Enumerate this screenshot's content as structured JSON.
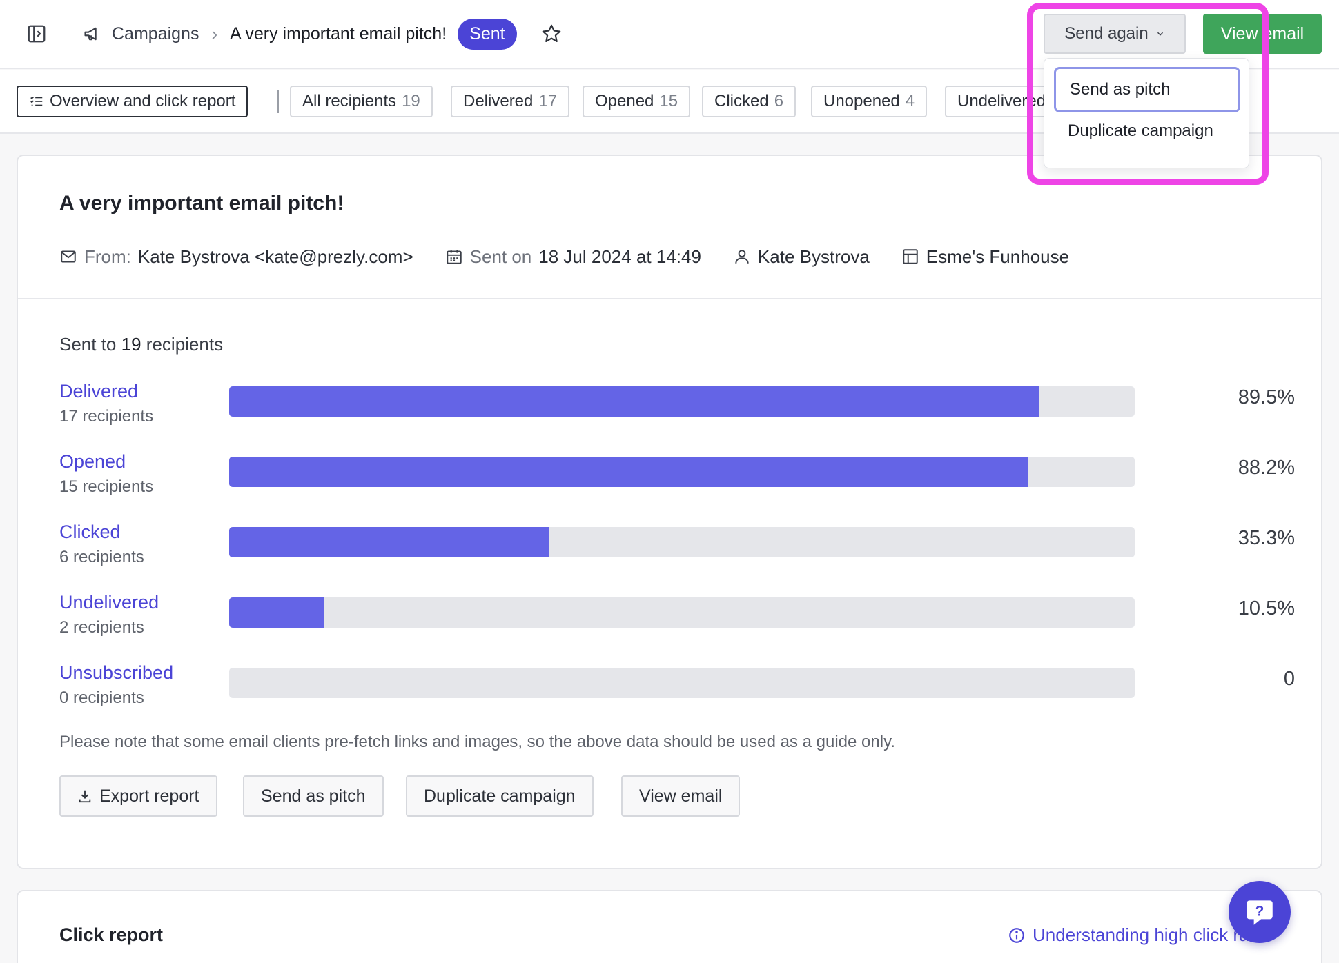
{
  "header": {
    "breadcrumb": {
      "section": "Campaigns",
      "current": "A very important email pitch!"
    },
    "status_badge": "Sent",
    "send_again_label": "Send again",
    "view_email_label": "View email"
  },
  "dropdown": {
    "items": [
      {
        "label": "Send as pitch"
      },
      {
        "label": "Duplicate campaign"
      }
    ]
  },
  "tabs": [
    {
      "label": "Overview and click report",
      "count": "",
      "active": true
    },
    {
      "label": "All recipients",
      "count": "19"
    },
    {
      "label": "Delivered",
      "count": "17"
    },
    {
      "label": "Opened",
      "count": "15"
    },
    {
      "label": "Clicked",
      "count": "6"
    },
    {
      "label": "Unopened",
      "count": "4"
    },
    {
      "label": "Undelivered",
      "count": ""
    }
  ],
  "campaign": {
    "title": "A very important email pitch!",
    "from_label": "From:",
    "from_value": "Kate Bystrova <kate@prezly.com>",
    "sent_label": "Sent on",
    "sent_value": "18 Jul 2024 at 14:49",
    "author": "Kate Bystrova",
    "newsroom": "Esme's Funhouse"
  },
  "stats": {
    "sent_to_prefix": "Sent to",
    "sent_to_count": "19",
    "sent_to_suffix": "recipients",
    "rows": [
      {
        "name": "Delivered",
        "sub": "17 recipients",
        "pct_label": "89.5%",
        "fill": 0.895
      },
      {
        "name": "Opened",
        "sub": "15 recipients",
        "pct_label": "88.2%",
        "fill": 0.882
      },
      {
        "name": "Clicked",
        "sub": "6 recipients",
        "pct_label": "35.3%",
        "fill": 0.353
      },
      {
        "name": "Undelivered",
        "sub": "2 recipients",
        "pct_label": "10.5%",
        "fill": 0.105
      },
      {
        "name": "Unsubscribed",
        "sub": "0 recipients",
        "pct_label": "0",
        "fill": 0
      }
    ],
    "note": "Please note that some email clients pre-fetch links and images, so the above data should be used as a guide only."
  },
  "actions": {
    "export": "Export report",
    "send_as_pitch": "Send as pitch",
    "duplicate": "Duplicate campaign",
    "view_email": "View email"
  },
  "click_report": {
    "title": "Click report",
    "help_link": "Understanding high click rates"
  },
  "colors": {
    "accent": "#4b44d6",
    "bar_fill": "#6464e6",
    "primary_green": "#3fa55b",
    "highlight": "#ee44e6"
  }
}
